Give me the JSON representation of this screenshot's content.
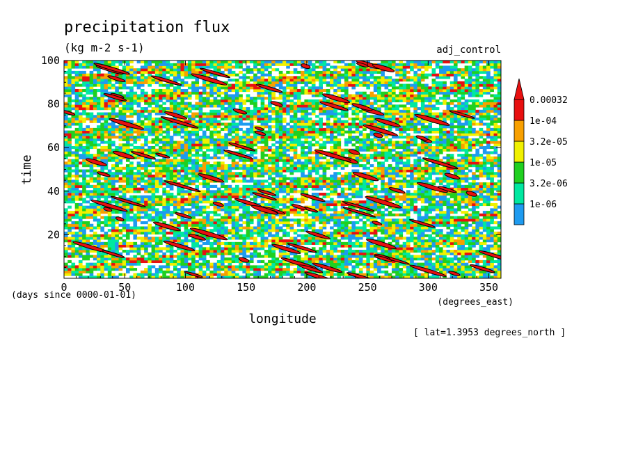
{
  "chart_data": {
    "type": "heatmap",
    "title": "precipitation flux",
    "units": "(kg m-2 s-1)",
    "experiment": "adj_control",
    "xlabel": "longitude",
    "ylabel": "time",
    "x_units": "(degrees_east)",
    "y_units": "(days since 0000-01-01)",
    "footnote": "[ lat=1.3953 degrees_north ]",
    "xlim": [
      0,
      360
    ],
    "ylim": [
      0,
      100
    ],
    "x_ticks": [
      0,
      50,
      100,
      150,
      200,
      250,
      300,
      350
    ],
    "y_ticks": [
      20,
      40,
      60,
      80,
      100
    ],
    "x_tick_labels": [
      "0",
      "50",
      "100",
      "150",
      "200",
      "250",
      "300",
      "350"
    ],
    "y_tick_labels": [
      "20",
      "40",
      "60",
      "80",
      "100"
    ],
    "colorbar": {
      "labels": [
        "0.00032",
        "1e-04",
        "3.2e-05",
        "1e-05",
        "3.2e-06",
        "1e-06"
      ],
      "levels": [
        1e-06,
        3.2e-06,
        1e-05,
        3.2e-05,
        0.0001,
        0.00032
      ],
      "colors": [
        "#1e9bf0",
        "#00e8a0",
        "#20d020",
        "#f0f000",
        "#f8a000",
        "#e81010"
      ],
      "extend": "max"
    },
    "overlay": "black contours around the heaviest precipitation",
    "pattern": {
      "description": "field dominated by westward-propagating streaks",
      "streak_slope_deg_per_day": -6
    }
  }
}
